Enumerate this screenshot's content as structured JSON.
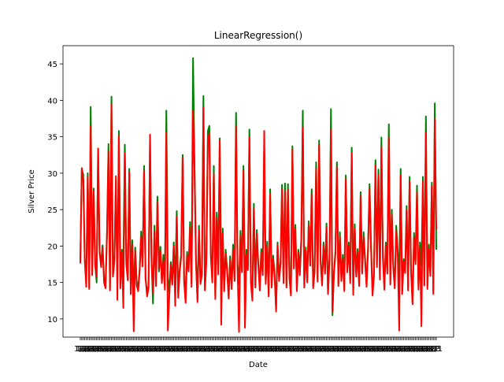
{
  "chart_data": {
    "type": "line",
    "title": "LinearRegression()",
    "xlabel": "Date",
    "ylabel": "Silver Price",
    "ylim": [
      7.5,
      47.5
    ],
    "yticks": [
      10,
      15,
      20,
      25,
      30,
      35,
      40,
      45
    ],
    "grid": false,
    "legend": "none",
    "x_tick_labels_note_visible": "1/",
    "x_tick_labels": [
      "1/1",
      "1/2",
      "1/3"
    ],
    "series": [
      {
        "color": "#008000",
        "values": [
          17.8,
          30.5,
          29.8,
          18.2,
          15.1,
          30.0,
          14.3,
          39.1,
          16.2,
          27.9,
          17.5,
          15.0,
          33.2,
          19.0,
          17.8,
          20.1,
          15.6,
          14.9,
          22.0,
          34.0,
          14.2,
          40.5,
          16.0,
          18.2,
          29.0,
          14.8,
          35.8,
          15.0,
          19.5,
          17.2,
          33.9,
          18.1,
          15.6,
          30.6,
          14.5,
          20.8,
          13.2,
          19.8,
          15.2,
          14.1,
          16.8,
          22.0,
          17.5,
          31.0,
          15.4,
          13.8,
          14.5,
          34.0,
          18.2,
          12.1,
          22.8,
          14.8,
          26.8,
          16.5,
          19.9,
          15.2,
          18.8,
          14.5,
          38.6,
          16.0,
          13.5,
          17.8,
          15.1,
          20.5,
          14.4,
          24.8,
          13.6,
          16.8,
          18.9,
          32.5,
          15.3,
          14.1,
          19.2,
          17.0,
          23.3,
          14.9,
          45.8,
          30.9,
          18.3,
          12.6,
          22.8,
          15.5,
          16.8,
          40.6,
          14.1,
          18.4,
          35.8,
          36.5,
          19.0,
          15.5,
          31.0,
          13.2,
          24.6,
          16.9,
          34.8,
          15.2,
          22.4,
          14.2,
          19.5,
          16.8,
          13.1,
          18.6,
          14.5,
          20.2,
          15.7,
          38.3,
          17.5,
          14.8,
          22.1,
          16.6,
          31.0,
          14.4,
          19.5,
          17.2,
          36.0,
          15.3,
          12.9,
          25.8,
          14.7,
          22.2,
          17.6,
          14.3,
          19.6,
          16.4,
          33.5,
          15.1,
          20.6,
          13.4,
          27.8,
          14.8,
          18.7,
          16.2,
          11.5,
          20.5,
          15.7,
          17.8,
          28.4,
          15.2,
          28.6,
          14.6,
          28.5,
          15.9,
          13.5,
          33.7,
          17.3,
          22.9,
          14.1,
          19.5,
          16.4,
          21.2,
          38.6,
          14.7,
          19.8,
          15.3,
          23.4,
          17.6,
          27.8,
          14.5,
          16.9,
          31.5,
          15.4,
          34.5,
          18.2,
          14.9,
          20.5,
          16.5,
          23.1,
          13.7,
          18.5,
          38.8,
          10.5,
          16.4,
          19.3,
          31.5,
          14.8,
          21.9,
          15.6,
          18.8,
          14.2,
          29.7,
          16.8,
          20.5,
          15.3,
          33.5,
          13.7,
          23.0,
          16.2,
          19.6,
          14.8,
          27.4,
          16.5,
          21.9,
          18.3,
          14.8,
          19.9,
          28.5,
          20.3,
          13.7,
          16.1,
          31.8,
          17.5,
          30.5,
          15.8,
          34.9,
          18.8,
          14.3,
          20.5,
          16.6,
          36.7,
          15.1,
          25.0,
          17.4,
          14.6,
          22.8,
          19.4,
          15.3,
          30.6,
          13.8,
          18.2,
          16.6,
          25.5,
          14.3,
          29.5,
          16.7,
          12.3,
          21.8,
          17.9,
          28.3,
          14.4,
          20.5,
          17.3,
          29.5,
          15.0,
          37.8,
          14.6,
          20.2,
          16.3,
          28.7,
          13.8,
          39.6,
          19.5
        ]
      },
      {
        "color": "#ff0000",
        "values": [
          17.6,
          30.7,
          29.1,
          17.9,
          14.4,
          29.5,
          14.1,
          36.5,
          16.0,
          27.6,
          17.3,
          15.8,
          33.4,
          19.2,
          17.1,
          19.8,
          15.0,
          14.2,
          21.5,
          33.0,
          13.9,
          39.5,
          15.8,
          18.0,
          29.6,
          12.6,
          35.2,
          14.2,
          19.1,
          11.5,
          32.8,
          17.5,
          15.3,
          30.1,
          13.4,
          20.2,
          8.3,
          19.4,
          14.6,
          13.8,
          16.5,
          21.3,
          17.2,
          30.3,
          15.6,
          13.1,
          14.2,
          35.3,
          17.8,
          13.6,
          22.0,
          14.5,
          26.1,
          16.8,
          19.4,
          14.9,
          18.0,
          14.0,
          35.6,
          8.4,
          13.1,
          17.5,
          14.7,
          20.0,
          11.8,
          24.0,
          12.9,
          16.4,
          18.5,
          32.1,
          15.0,
          12.2,
          18.8,
          16.5,
          22.6,
          14.4,
          38.6,
          30.5,
          17.5,
          12.3,
          22.2,
          14.8,
          16.1,
          39.0,
          13.9,
          17.8,
          34.5,
          35.5,
          18.5,
          15.0,
          29.9,
          12.7,
          23.9,
          16.1,
          34.5,
          9.2,
          21.8,
          13.8,
          18.9,
          16.5,
          12.8,
          18.0,
          14.1,
          19.5,
          15.2,
          36.5,
          17.0,
          8.2,
          21.5,
          16.4,
          30.4,
          8.8,
          18.8,
          16.7,
          34.9,
          14.9,
          12.5,
          25.1,
          14.3,
          21.7,
          17.3,
          13.9,
          19.1,
          16.0,
          35.8,
          14.8,
          20.1,
          13.1,
          27.2,
          14.3,
          18.3,
          16.0,
          11.0,
          20.1,
          15.2,
          17.5,
          27.8,
          14.9,
          27.5,
          14.3,
          27.8,
          15.6,
          13.2,
          33.3,
          16.9,
          22.4,
          13.8,
          19.1,
          16.0,
          20.9,
          36.3,
          14.3,
          19.4,
          15.0,
          22.9,
          17.3,
          27.1,
          14.2,
          16.5,
          30.6,
          15.1,
          33.9,
          17.8,
          14.6,
          20.1,
          16.2,
          22.5,
          13.4,
          18.1,
          35.9,
          11.0,
          16.1,
          18.9,
          30.8,
          14.5,
          21.4,
          15.2,
          18.3,
          13.8,
          29.2,
          16.4,
          20.0,
          14.9,
          32.7,
          13.3,
          22.4,
          15.8,
          19.2,
          14.5,
          26.9,
          16.2,
          21.3,
          17.9,
          14.4,
          19.5,
          27.9,
          19.7,
          13.2,
          15.8,
          31.1,
          17.1,
          29.8,
          15.4,
          33.5,
          18.3,
          14.0,
          20.1,
          16.2,
          34.9,
          14.7,
          24.4,
          17.0,
          14.2,
          22.1,
          19.0,
          8.4,
          29.7,
          13.4,
          17.8,
          16.3,
          24.9,
          13.9,
          28.8,
          16.4,
          12.0,
          21.2,
          17.5,
          27.4,
          14.0,
          19.9,
          9.0,
          28.9,
          14.6,
          35.6,
          14.1,
          19.6,
          15.9,
          28.2,
          13.4,
          37.4,
          22.2
        ]
      }
    ]
  }
}
